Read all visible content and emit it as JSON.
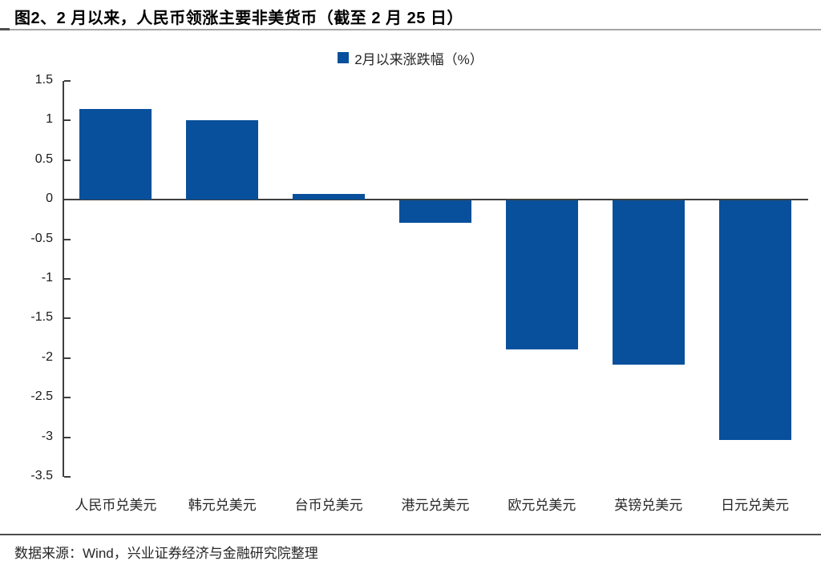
{
  "header": {
    "title": "图2、2 月以来，人民币领涨主要非美货币（截至 2 月 25 日）"
  },
  "legend": {
    "label": "2月以来涨跌幅（%）"
  },
  "footer": {
    "source": "数据来源：Wind，兴业证券经济与金融研究院整理"
  },
  "colors": {
    "bar": "#08509C",
    "axis": "#3F3F3F",
    "title_rule": "#A6A6A6",
    "footer_rule": "#4D4D4D"
  },
  "chart_data": {
    "type": "bar",
    "title": "图2、2 月以来，人民币领涨主要非美货币（截至 2 月 25 日）",
    "series_name": "2月以来涨跌幅（%）",
    "categories": [
      "人民币兑美元",
      "韩元兑美元",
      "台币兑美元",
      "港元兑美元",
      "欧元兑美元",
      "英镑兑美元",
      "日元兑美元"
    ],
    "values": [
      1.15,
      1.0,
      0.07,
      -0.28,
      -1.88,
      -2.07,
      -3.02
    ],
    "unit": "%",
    "xlabel": "",
    "ylabel": "",
    "ylim": [
      -3.5,
      1.5
    ],
    "yticks": [
      1.5,
      1,
      0.5,
      0,
      -0.5,
      -1,
      -1.5,
      -2,
      -2.5,
      -3,
      -3.5
    ],
    "grid": false,
    "legend_position": "top-center",
    "bar_color": "#08509C"
  }
}
